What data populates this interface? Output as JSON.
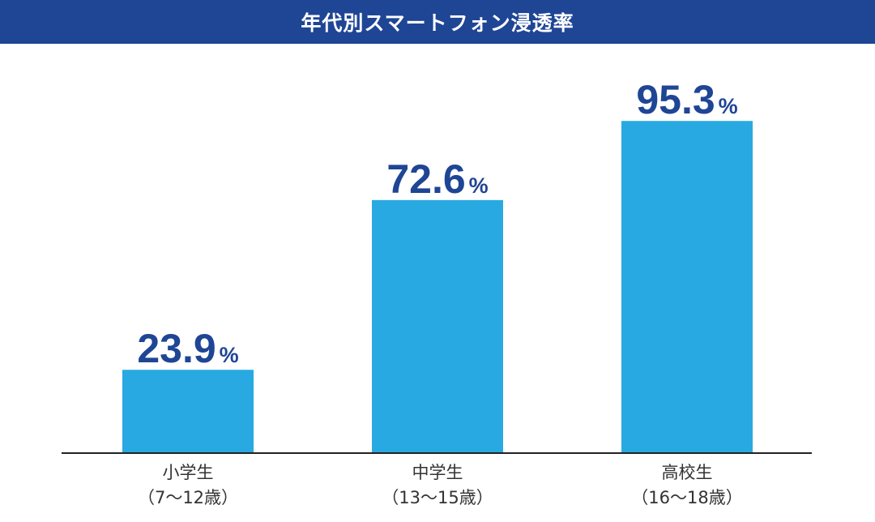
{
  "title": "年代別スマートフォン浸透率",
  "colors": {
    "title_bg": "#1f4595",
    "title_text": "#ffffff",
    "bar": "#29a9e1",
    "value_text": "#1f4595",
    "axis": "#222222",
    "label_text": "#333333"
  },
  "chart_data": {
    "type": "bar",
    "title": "年代別スマートフォン浸透率",
    "categories": [
      "小学生（7〜12歳）",
      "中学生（13〜15歳）",
      "高校生（16〜18歳）"
    ],
    "category_lines": [
      [
        "小学生",
        "（7〜12歳）"
      ],
      [
        "中学生",
        "（13〜15歳）"
      ],
      [
        "高校生",
        "（16〜18歳）"
      ]
    ],
    "values": [
      23.9,
      72.6,
      95.3
    ],
    "value_labels": [
      "23.9",
      "72.6",
      "95.3"
    ],
    "unit": "%",
    "xlabel": "",
    "ylabel": "",
    "ylim": [
      0,
      100
    ],
    "grid": false,
    "legend": "none"
  }
}
